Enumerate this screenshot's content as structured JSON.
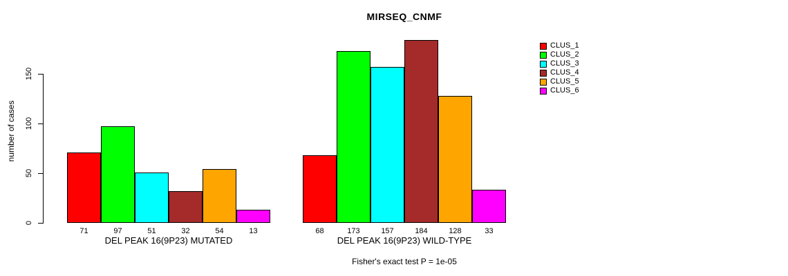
{
  "chart_data": {
    "type": "bar",
    "title": "MIRSEQ_CNMF",
    "ylabel": "number of cases",
    "xlabel": "",
    "ylim": [
      0,
      184
    ],
    "yticks": [
      0,
      50,
      100,
      150
    ],
    "grid": false,
    "legend_position": "right",
    "legend": [
      {
        "label": "CLUS_1",
        "color": "#FF0000"
      },
      {
        "label": "CLUS_2",
        "color": "#00FF00"
      },
      {
        "label": "CLUS_3",
        "color": "#00FFFF"
      },
      {
        "label": "CLUS_4",
        "color": "#A52A2A"
      },
      {
        "label": "CLUS_5",
        "color": "#FFA500"
      },
      {
        "label": "CLUS_6",
        "color": "#FF00FF"
      }
    ],
    "groups": [
      {
        "label": "DEL PEAK 16(9P23) MUTATED",
        "values": [
          71,
          97,
          51,
          32,
          54,
          13
        ]
      },
      {
        "label": "DEL PEAK 16(9P23) WILD-TYPE",
        "values": [
          68,
          173,
          157,
          184,
          128,
          33
        ]
      }
    ],
    "footnote": "Fisher's exact test P = 1e-05"
  }
}
